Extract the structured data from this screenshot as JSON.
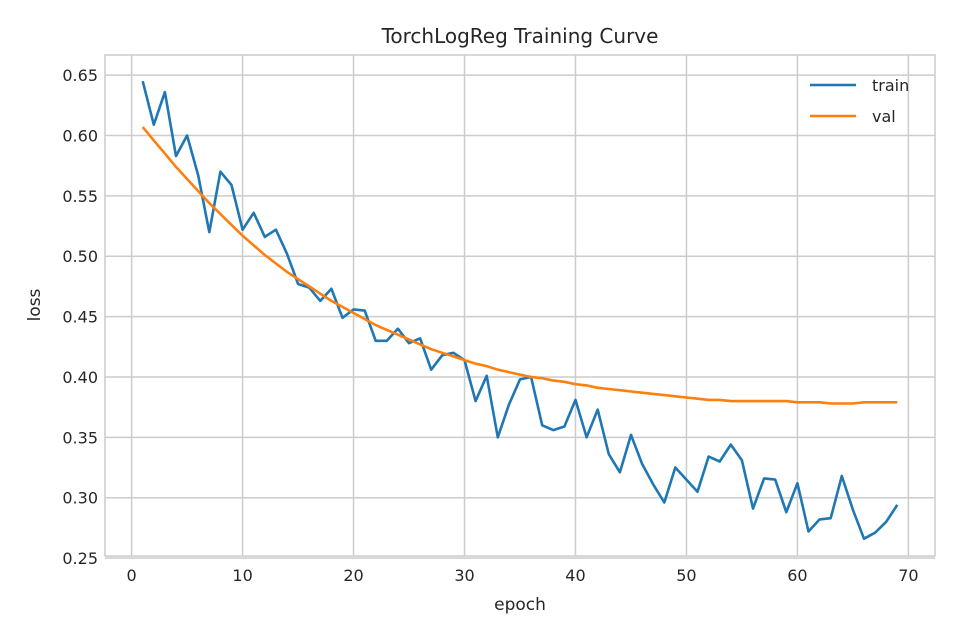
{
  "chart_data": {
    "type": "line",
    "title": "TorchLogReg Training Curve",
    "xlabel": "epoch",
    "ylabel": "loss",
    "xlim": [
      -2.4,
      72.4
    ],
    "ylim": [
      0.2517,
      0.6667
    ],
    "xticks": [
      0,
      10,
      20,
      30,
      40,
      50,
      60,
      70
    ],
    "yticks": [
      0.25,
      0.3,
      0.35,
      0.4,
      0.45,
      0.5,
      0.55,
      0.6,
      0.65
    ],
    "ytick_labels": [
      "0.25",
      "0.30",
      "0.35",
      "0.40",
      "0.45",
      "0.50",
      "0.55",
      "0.60",
      "0.65"
    ],
    "grid": true,
    "legend": "top-right",
    "x": [
      1,
      2,
      3,
      4,
      5,
      6,
      7,
      8,
      9,
      10,
      11,
      12,
      13,
      14,
      15,
      16,
      17,
      18,
      19,
      20,
      21,
      22,
      23,
      24,
      25,
      26,
      27,
      28,
      29,
      30,
      31,
      32,
      33,
      34,
      35,
      36,
      37,
      38,
      39,
      40,
      41,
      42,
      43,
      44,
      45,
      46,
      47,
      48,
      49,
      50,
      51,
      52,
      53,
      54,
      55,
      56,
      57,
      58,
      59,
      60,
      61,
      62,
      63,
      64,
      65,
      66,
      67,
      68,
      69
    ],
    "series": [
      {
        "name": "train",
        "color": "#1f77b4",
        "values": [
          0.645,
          0.609,
          0.636,
          0.583,
          0.6,
          0.567,
          0.52,
          0.57,
          0.559,
          0.522,
          0.536,
          0.516,
          0.522,
          0.502,
          0.477,
          0.474,
          0.463,
          0.473,
          0.449,
          0.456,
          0.455,
          0.43,
          0.43,
          0.44,
          0.428,
          0.432,
          0.406,
          0.418,
          0.42,
          0.414,
          0.38,
          0.401,
          0.35,
          0.377,
          0.398,
          0.4,
          0.36,
          0.356,
          0.359,
          0.381,
          0.35,
          0.373,
          0.336,
          0.321,
          0.352,
          0.328,
          0.311,
          0.296,
          0.325,
          0.315,
          0.305,
          0.334,
          0.33,
          0.344,
          0.331,
          0.291,
          0.316,
          0.315,
          0.288,
          0.312,
          0.272,
          0.282,
          0.283,
          0.318,
          0.29,
          0.266,
          0.271,
          0.28,
          0.294
        ]
      },
      {
        "name": "val",
        "color": "#ff7f0e",
        "values": [
          0.607,
          0.596,
          0.585,
          0.574,
          0.564,
          0.554,
          0.544,
          0.535,
          0.526,
          0.517,
          0.509,
          0.501,
          0.494,
          0.487,
          0.481,
          0.475,
          0.469,
          0.463,
          0.458,
          0.453,
          0.448,
          0.443,
          0.439,
          0.435,
          0.431,
          0.427,
          0.423,
          0.42,
          0.417,
          0.414,
          0.411,
          0.409,
          0.406,
          0.404,
          0.402,
          0.4,
          0.399,
          0.397,
          0.396,
          0.394,
          0.393,
          0.391,
          0.39,
          0.389,
          0.388,
          0.387,
          0.386,
          0.385,
          0.384,
          0.383,
          0.382,
          0.381,
          0.381,
          0.38,
          0.38,
          0.38,
          0.38,
          0.38,
          0.38,
          0.379,
          0.379,
          0.379,
          0.378,
          0.378,
          0.378,
          0.379,
          0.379,
          0.379,
          0.379
        ]
      }
    ]
  }
}
